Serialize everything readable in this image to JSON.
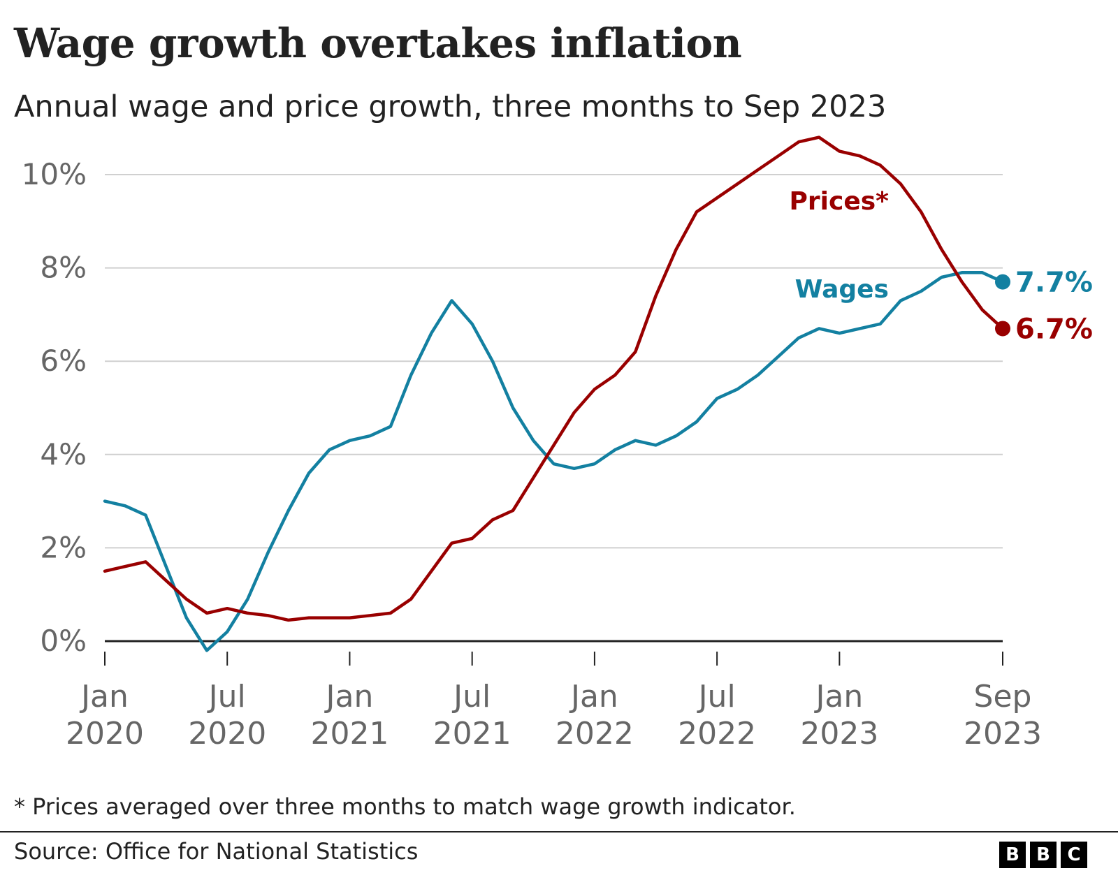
{
  "title": "Wage growth overtakes inflation",
  "subtitle": "Annual wage and price growth, three months to Sep 2023",
  "footnote": "* Prices averaged over three months to match wage growth indicator.",
  "source": "Source: Office for National Statistics",
  "logo": [
    "B",
    "B",
    "C"
  ],
  "chart_data": {
    "type": "line",
    "ylim": [
      0,
      10
    ],
    "yticks": [
      0,
      2,
      4,
      6,
      8,
      10
    ],
    "ytick_labels": [
      "0%",
      "2%",
      "4%",
      "6%",
      "8%",
      "10%"
    ],
    "grid": true,
    "x_dates": [
      "2020-01",
      "2020-02",
      "2020-03",
      "2020-04",
      "2020-05",
      "2020-06",
      "2020-07",
      "2020-08",
      "2020-09",
      "2020-10",
      "2020-11",
      "2020-12",
      "2021-01",
      "2021-02",
      "2021-03",
      "2021-04",
      "2021-05",
      "2021-06",
      "2021-07",
      "2021-08",
      "2021-09",
      "2021-10",
      "2021-11",
      "2021-12",
      "2022-01",
      "2022-02",
      "2022-03",
      "2022-04",
      "2022-05",
      "2022-06",
      "2022-07",
      "2022-08",
      "2022-09",
      "2022-10",
      "2022-11",
      "2022-12",
      "2023-01",
      "2023-02",
      "2023-03",
      "2023-04",
      "2023-05",
      "2023-06",
      "2023-07",
      "2023-08",
      "2023-09"
    ],
    "xticks": [
      {
        "date": "2020-01",
        "line1": "Jan",
        "line2": "2020"
      },
      {
        "date": "2020-07",
        "line1": "Jul",
        "line2": "2020"
      },
      {
        "date": "2021-01",
        "line1": "Jan",
        "line2": "2021"
      },
      {
        "date": "2021-07",
        "line1": "Jul",
        "line2": "2021"
      },
      {
        "date": "2022-01",
        "line1": "Jan",
        "line2": "2022"
      },
      {
        "date": "2022-07",
        "line1": "Jul",
        "line2": "2022"
      },
      {
        "date": "2023-01",
        "line1": "Jan",
        "line2": "2023"
      },
      {
        "date": "2023-09",
        "line1": "Sep",
        "line2": "2023"
      }
    ],
    "series": [
      {
        "name": "Wages",
        "color": "#1380a1",
        "end_label": "7.7%",
        "values": [
          3.0,
          2.9,
          2.7,
          1.6,
          0.5,
          -0.2,
          0.2,
          0.9,
          1.9,
          2.8,
          3.6,
          4.1,
          4.3,
          4.4,
          4.6,
          5.7,
          6.6,
          7.3,
          6.8,
          6.0,
          5.0,
          4.3,
          3.8,
          3.7,
          3.8,
          4.1,
          4.3,
          4.2,
          4.4,
          4.7,
          5.2,
          5.4,
          5.7,
          6.1,
          6.5,
          6.7,
          6.6,
          6.7,
          6.8,
          7.3,
          7.5,
          7.8,
          7.9,
          7.9,
          7.7
        ]
      },
      {
        "name": "Prices*",
        "color": "#990000",
        "end_label": "6.7%",
        "values": [
          1.5,
          1.6,
          1.7,
          1.3,
          0.9,
          0.6,
          0.7,
          0.6,
          0.55,
          0.45,
          0.5,
          0.5,
          0.5,
          0.55,
          0.6,
          0.9,
          1.5,
          2.1,
          2.2,
          2.6,
          2.8,
          3.5,
          4.2,
          4.9,
          5.4,
          5.7,
          6.2,
          7.4,
          8.4,
          9.2,
          9.5,
          9.8,
          10.1,
          10.4,
          10.7,
          10.8,
          10.5,
          10.4,
          10.2,
          9.8,
          9.2,
          8.4,
          7.7,
          7.1,
          6.7
        ]
      }
    ]
  }
}
